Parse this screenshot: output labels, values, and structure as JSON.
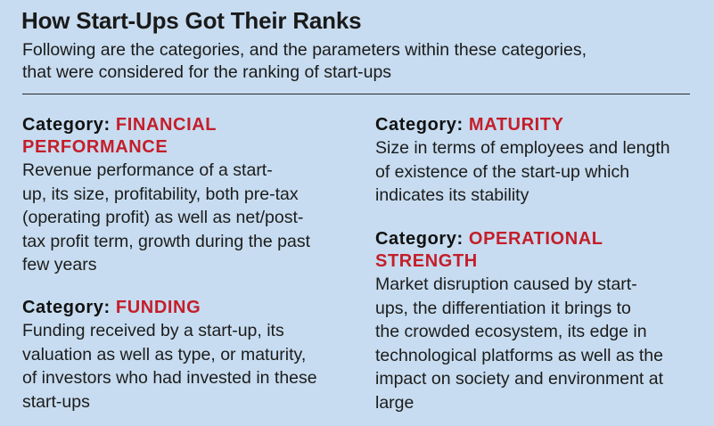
{
  "header": {
    "title": "How Start-Ups Got Their Ranks",
    "subtitle_lines": [
      "Following are the categories, and the parameters within these categories,",
      "that were considered for the ranking of start-ups"
    ]
  },
  "colors": {
    "background": "#c7dcf0",
    "accent": "#c41e2a",
    "text": "#1a1a1a"
  },
  "categories": {
    "financial": {
      "prefix": "Category:",
      "name_lines": [
        "FINANCIAL",
        "PERFORMANCE"
      ],
      "desc_lines": [
        "Revenue performance of a start-",
        "up, its size, profitability, both pre-tax",
        "(operating profit) as well as net/post-",
        "tax profit term, growth during the past",
        "few years"
      ]
    },
    "funding": {
      "prefix": "Category:",
      "name": "FUNDING",
      "desc_lines": [
        "Funding received by a start-up, its",
        "valuation as well as type, or maturity,",
        "of investors who had invested in these",
        "start-ups"
      ]
    },
    "maturity": {
      "prefix": "Category:",
      "name": "MATURITY",
      "desc_lines": [
        "Size in terms of employees and length",
        "of existence of the start-up which",
        "indicates its stability"
      ]
    },
    "operational": {
      "prefix": "Category:",
      "name_lines": [
        "OPERATIONAL",
        "STRENGTH"
      ],
      "desc_lines": [
        "Market disruption caused by start-",
        "ups, the differentiation it brings to",
        "the crowded ecosystem, its edge in",
        "technological platforms as well as the",
        "impact on society and environment at",
        "large"
      ]
    }
  }
}
